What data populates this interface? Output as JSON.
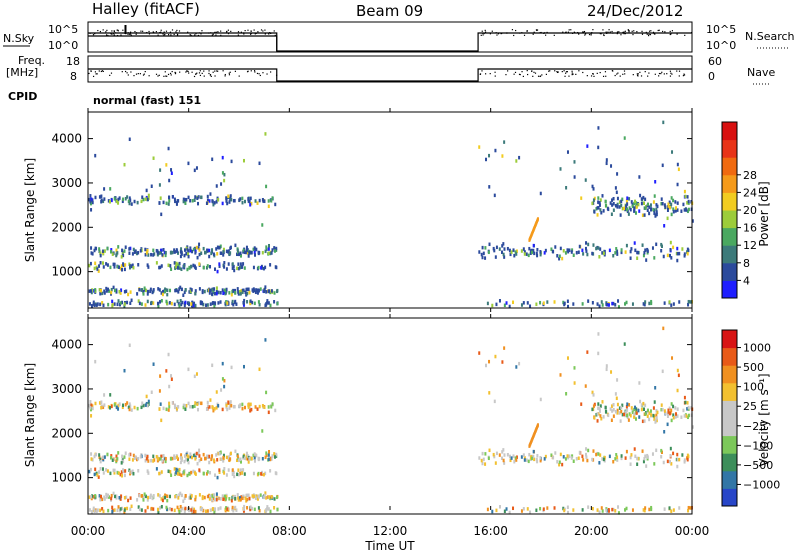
{
  "header": {
    "station": "Halley (fitACF)",
    "beam": "Beam 09",
    "date": "24/Dec/2012"
  },
  "panel_labels": {
    "nsky": "N.Sky",
    "nsearch": "N.Search",
    "freq_1": "Freq.",
    "freq_2": "[MHz]",
    "nave": "Nave",
    "cpid": "CPID",
    "cpid_value": "normal (fast) 151",
    "nsky_ticks": [
      "10^5",
      "10^0"
    ],
    "nsearch_ticks": [
      "10^5",
      "10^0"
    ],
    "freq_ticks": [
      "18",
      "8"
    ],
    "nave_ticks": [
      "60",
      "0"
    ]
  },
  "chart_data": [
    {
      "type": "heatmap",
      "name": "power",
      "ylabel": "Slant Range [km]",
      "y_ticks": [
        1000,
        2000,
        3000,
        4000
      ],
      "ylim": [
        180,
        4600
      ],
      "colorbar": {
        "label": "Power [dB]",
        "ticks": [
          "4",
          "8",
          "12",
          "16",
          "20",
          "24",
          "28"
        ],
        "colors": [
          "#1f1fff",
          "#2b4a9c",
          "#3c7a7a",
          "#4aa860",
          "#9ccc3a",
          "#f2cc20",
          "#f59a1a",
          "#f06a10",
          "#e83418",
          "#d81010"
        ]
      }
    },
    {
      "type": "heatmap",
      "name": "velocity",
      "ylabel": "Slant Range [km]",
      "y_ticks": [
        1000,
        2000,
        3000,
        4000
      ],
      "ylim": [
        180,
        4600
      ],
      "colorbar": {
        "label": "Velocity [m s⁻¹]",
        "ticks": [
          "1000",
          "500",
          "100",
          "25",
          "−25",
          "−100",
          "−500",
          "−1000"
        ],
        "colors": [
          "#2846c8",
          "#3276a6",
          "#3c8e5a",
          "#7cc85a",
          "#c8c8c8",
          "#c8c8c8",
          "#f2c030",
          "#f09020",
          "#e85a18",
          "#d81414"
        ]
      }
    }
  ],
  "time_axis": {
    "label": "Time UT",
    "ticks": [
      "00:00",
      "04:00",
      "08:00",
      "12:00",
      "16:00",
      "20:00",
      "00:00"
    ],
    "xlim_hours": [
      0,
      24
    ],
    "data_gap_hours": [
      7.5,
      15.5
    ]
  }
}
